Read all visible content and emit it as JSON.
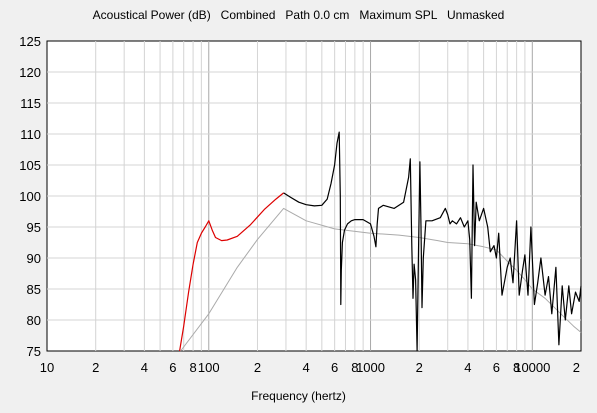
{
  "window": {
    "title": "Acoustical Power (dB)   Combined   Path 0.0 cm   Maximum SPL   Unmasked"
  },
  "chart_data": {
    "type": "line",
    "title": "Acoustical Power (dB)   Combined   Path 0.0 cm   Maximum SPL   Unmasked",
    "xlabel": "Frequency (hertz)",
    "ylabel": "",
    "x_scale": "log",
    "xlim": [
      10,
      20000
    ],
    "ylim": [
      75,
      125
    ],
    "grid": true,
    "x_ticks": [
      {
        "value": 10,
        "label": "10"
      },
      {
        "value": 20,
        "label": "2"
      },
      {
        "value": 40,
        "label": "4"
      },
      {
        "value": 60,
        "label": "6"
      },
      {
        "value": 80,
        "label": "8"
      },
      {
        "value": 100,
        "label": "100"
      },
      {
        "value": 200,
        "label": "2"
      },
      {
        "value": 400,
        "label": "4"
      },
      {
        "value": 600,
        "label": "6"
      },
      {
        "value": 800,
        "label": "8"
      },
      {
        "value": 1000,
        "label": "1000"
      },
      {
        "value": 2000,
        "label": "2"
      },
      {
        "value": 4000,
        "label": "4"
      },
      {
        "value": 6000,
        "label": "6"
      },
      {
        "value": 8000,
        "label": "8"
      },
      {
        "value": 10000,
        "label": "10000"
      },
      {
        "value": 20000,
        "label": "2"
      }
    ],
    "y_ticks": [
      75,
      80,
      85,
      90,
      95,
      100,
      105,
      110,
      115,
      120,
      125
    ],
    "series": [
      {
        "color": "#aaaaaa",
        "x": [
          67,
          100,
          150,
          200,
          290,
          400,
          600,
          1000,
          1500,
          2000,
          2600,
          3000,
          4000,
          5000,
          6000,
          7000,
          8000,
          9000,
          10000,
          12000,
          15000,
          18000,
          20000
        ],
        "y": [
          75,
          81,
          88.5,
          93,
          98,
          96,
          94.7,
          94,
          93.7,
          93.3,
          92.8,
          92.5,
          92.3,
          91.8,
          91.3,
          89.5,
          88,
          86.5,
          85,
          83.5,
          81,
          79,
          78
        ]
      },
      {
        "color": "#dd0000",
        "x": [
          66,
          70,
          75,
          80,
          85,
          90,
          95,
          100,
          105,
          110,
          120,
          130,
          150,
          180,
          220,
          260,
          290
        ],
        "y": [
          75,
          79,
          84.5,
          89,
          92.5,
          94,
          95,
          96,
          94.5,
          93.3,
          92.8,
          92.9,
          93.5,
          95.3,
          97.8,
          99.5,
          100.5
        ]
      },
      {
        "color": "#000000",
        "x": [
          290,
          320,
          360,
          400,
          450,
          500,
          540,
          570,
          600,
          620,
          640,
          650,
          655,
          660,
          670,
          690,
          720,
          760,
          800,
          900,
          1000,
          1050,
          1080,
          1100,
          1120,
          1200,
          1400,
          1600,
          1720,
          1760,
          1800,
          1830,
          1860,
          1900,
          1940,
          1980,
          2020,
          2050,
          2080,
          2120,
          2200,
          2400,
          2700,
          2900,
          3000,
          3100,
          3200,
          3400,
          3600,
          3800,
          4000,
          4100,
          4200,
          4300,
          4400,
          4500,
          4700,
          5000,
          5300,
          5500,
          5800,
          6000,
          6200,
          6500,
          7000,
          7300,
          7600,
          8000,
          8300,
          8700,
          9000,
          9400,
          9800,
          10300,
          10800,
          11300,
          12000,
          12600,
          13200,
          14000,
          14600,
          15300,
          16000,
          16800,
          17500,
          18500,
          19500,
          20000
        ],
        "y": [
          100.5,
          99.8,
          99,
          98.6,
          98.4,
          98.5,
          99.5,
          102,
          105,
          108.5,
          110.3,
          100,
          82.5,
          88,
          92.5,
          94.5,
          95.5,
          96,
          96.2,
          96.2,
          95.5,
          93.5,
          91.8,
          95.5,
          98,
          98.5,
          98,
          99,
          103,
          106,
          92,
          83.5,
          89,
          86.5,
          75,
          91,
          105.5,
          95,
          82,
          90,
          96,
          96,
          96.5,
          98,
          97,
          95.5,
          96,
          95.5,
          96.5,
          95,
          96,
          93,
          83.5,
          105,
          92,
          99,
          96,
          98,
          95,
          91,
          92,
          90,
          94,
          84,
          88.5,
          90,
          86,
          96,
          84,
          88,
          90.5,
          84,
          95,
          82.5,
          86,
          90,
          84,
          87,
          81,
          88.5,
          76,
          85.5,
          80,
          85.5,
          81,
          84.5,
          83,
          85.5
        ]
      }
    ]
  }
}
